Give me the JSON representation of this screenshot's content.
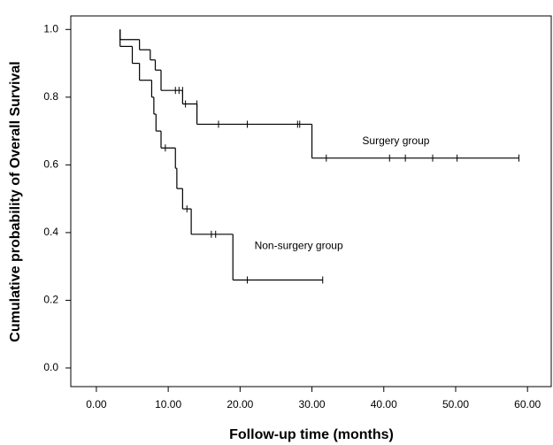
{
  "chart_data": {
    "type": "survival",
    "xlabel": "Follow-up time (months)",
    "ylabel": "Cumulative probability of Overall Survival",
    "xlim": [
      -3.56,
      63.3
    ],
    "ylim": [
      -0.055,
      1.04
    ],
    "xticks": [
      {
        "value": 0,
        "label": "0.00"
      },
      {
        "value": 10,
        "label": "10.00"
      },
      {
        "value": 20,
        "label": "20.00"
      },
      {
        "value": 30,
        "label": "30.00"
      },
      {
        "value": 40,
        "label": "40.00"
      },
      {
        "value": 50,
        "label": "50.00"
      },
      {
        "value": 60,
        "label": "60.00"
      }
    ],
    "yticks": [
      {
        "value": 0,
        "label": "0.0"
      },
      0.2,
      0.4,
      0.6,
      0.8,
      {
        "value": 1,
        "label": "1.0"
      }
    ],
    "series": [
      {
        "name": "Surgery group",
        "color": "#000000",
        "x": [
          3.3,
          3.3,
          6,
          7.5,
          8.2,
          9,
          12,
          14,
          30,
          58.8
        ],
        "values": [
          1.0,
          0.97,
          0.94,
          0.91,
          0.88,
          0.82,
          0.78,
          0.72,
          0.62,
          0.62
        ],
        "censored_x": [
          11,
          11.5,
          12,
          12.4,
          14,
          17,
          21,
          28,
          28.3,
          32,
          40.8,
          43,
          46.8,
          50.2,
          58.8
        ],
        "censored_values": [
          0.82,
          0.82,
          0.82,
          0.78,
          0.78,
          0.72,
          0.72,
          0.72,
          0.72,
          0.62,
          0.62,
          0.62,
          0.62,
          0.62,
          0.62
        ],
        "label_at": [
          37,
          0.67
        ]
      },
      {
        "name": "Non-surgery group",
        "color": "#000000",
        "x": [
          3.3,
          3.3,
          5,
          6,
          7.7,
          8,
          8.3,
          9,
          11,
          11.2,
          12,
          13.2,
          19,
          31.5
        ],
        "values": [
          1.0,
          0.95,
          0.9,
          0.85,
          0.8,
          0.75,
          0.7,
          0.65,
          0.59,
          0.53,
          0.47,
          0.395,
          0.26,
          0.26
        ],
        "censored_x": [
          9.6,
          12.6,
          16,
          16.6,
          21,
          31.5
        ],
        "censored_values": [
          0.65,
          0.47,
          0.395,
          0.395,
          0.26,
          0.26
        ],
        "label_at": [
          22,
          0.36
        ]
      }
    ]
  }
}
